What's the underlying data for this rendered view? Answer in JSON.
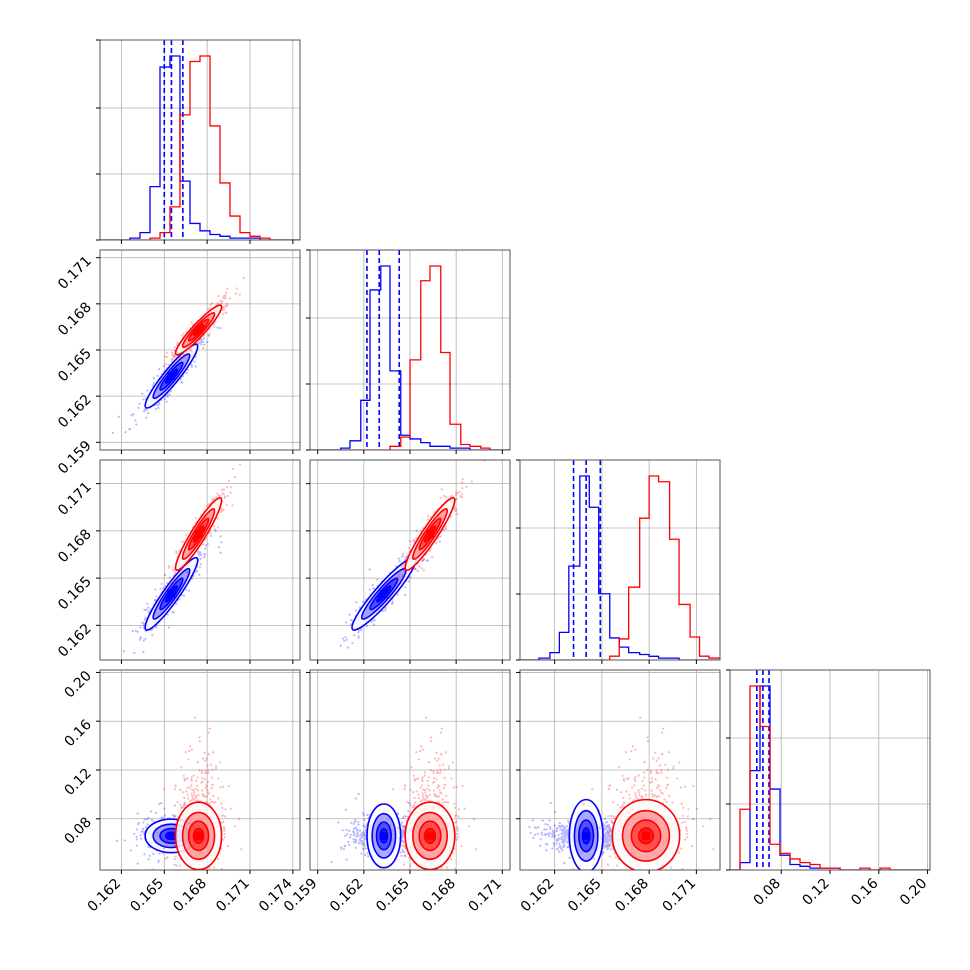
{
  "chart_data": {
    "type": "scatter",
    "title": "",
    "grid": true,
    "colors": {
      "blue": "#0000ff",
      "red": "#ff0000"
    },
    "dimensions": [
      {
        "range": [
          0.1605,
          0.1745
        ]
      },
      {
        "range": [
          0.1585,
          0.1715
        ]
      },
      {
        "range": [
          0.1598,
          0.1725
        ]
      },
      {
        "range": [
          0.038,
          0.202
        ]
      }
    ],
    "tick_labels": [
      {
        "values": [
          0.162,
          0.165,
          0.168,
          0.171,
          0.174
        ],
        "labels": [
          "0.162",
          "0.165",
          "0.168",
          "0.171",
          "0.174"
        ]
      },
      {
        "values": [
          0.159,
          0.162,
          0.165,
          0.168,
          0.171
        ],
        "labels": [
          "0.159",
          "0.162",
          "0.165",
          "0.168",
          "0.171"
        ]
      },
      {
        "values": [
          0.162,
          0.165,
          0.168,
          0.171
        ],
        "labels": [
          "0.162",
          "0.165",
          "0.168",
          "0.171"
        ]
      },
      {
        "values": [
          0.08,
          0.12,
          0.16,
          0.2
        ],
        "labels": [
          "0.08",
          "0.12",
          "0.16",
          "0.20"
        ]
      }
    ],
    "series": [
      {
        "color": "#0000ff",
        "mean": [
          0.1655,
          0.1633,
          0.164,
          0.066
        ],
        "std": [
          0.0008,
          0.0009,
          0.001,
          0.006
        ],
        "quantile_lines": [
          [
            0.165,
            0.1655,
            0.1663
          ],
          [
            0.1622,
            0.163,
            0.1643
          ],
          [
            0.1632,
            0.164,
            0.1649
          ],
          [
            0.06,
            0.065,
            0.07
          ]
        ],
        "histograms": [
          {
            "edges": [
              0.1605,
              0.1612,
              0.1619,
              0.1626,
              0.1633,
              0.164,
              0.1647,
              0.1654,
              0.1661,
              0.1668,
              0.1675,
              0.1682,
              0.1689,
              0.1696,
              0.1703,
              0.171,
              0.1717,
              0.1724,
              0.1731,
              0.1738,
              0.1745
            ],
            "counts": [
              0,
              0,
              0,
              1,
              4,
              29,
              94,
              100,
              32,
              9,
              5,
              3,
              2,
              1,
              1,
              1,
              0,
              0,
              0,
              0
            ]
          },
          {
            "edges": [
              0.1585,
              0.1592,
              0.1598,
              0.1605,
              0.1611,
              0.1618,
              0.1624,
              0.1631,
              0.1637,
              0.1644,
              0.165,
              0.1657,
              0.1663,
              0.167,
              0.1676,
              0.1683,
              0.1689,
              0.1696,
              0.1702,
              0.1709,
              0.1715
            ],
            "counts": [
              0,
              0,
              0,
              1,
              5,
              27,
              87,
              100,
              43,
              8,
              6,
              4,
              2,
              2,
              1,
              1,
              0,
              0,
              0,
              0
            ]
          },
          {
            "edges": [
              0.1598,
              0.1604,
              0.161,
              0.1617,
              0.1623,
              0.1629,
              0.1636,
              0.1642,
              0.1648,
              0.1655,
              0.1661,
              0.1667,
              0.1674,
              0.168,
              0.1686,
              0.1693,
              0.1699,
              0.1706,
              0.1712,
              0.1718,
              0.1725
            ],
            "counts": [
              0,
              0,
              1,
              4,
              15,
              51,
              100,
              83,
              36,
              12,
              7,
              4,
              3,
              2,
              1,
              1,
              0,
              0,
              0,
              0
            ]
          },
          {
            "edges": [
              0.038,
              0.0462,
              0.0544,
              0.0626,
              0.0708,
              0.079,
              0.0872,
              0.0954,
              0.1036,
              0.1118,
              0.12,
              0.1282,
              0.1364,
              0.1446,
              0.1528,
              0.161,
              0.1692,
              0.1774,
              0.1856,
              0.1938,
              0.202
            ],
            "counts": [
              0,
              4,
              54,
              100,
              44,
              8,
              3,
              2,
              1,
              1,
              1,
              0,
              0,
              0,
              0,
              0,
              0,
              0,
              0,
              0
            ]
          }
        ]
      },
      {
        "color": "#ff0000",
        "mean": [
          0.1674,
          0.1663,
          0.1678,
          0.066
        ],
        "std": [
          0.0007,
          0.0007,
          0.001,
          0.012
        ],
        "quantile_lines": [],
        "histograms": [
          {
            "edges": [
              0.1605,
              0.1612,
              0.1619,
              0.1626,
              0.1633,
              0.164,
              0.1647,
              0.1654,
              0.1661,
              0.1668,
              0.1675,
              0.1682,
              0.1689,
              0.1696,
              0.1703,
              0.171,
              0.1717,
              0.1724,
              0.1731,
              0.1738,
              0.1745
            ],
            "counts": [
              0,
              0,
              0,
              0,
              0,
              1,
              4,
              18,
              68,
              97,
              100,
              62,
              31,
              13,
              4,
              2,
              1,
              0,
              0,
              0
            ]
          },
          {
            "edges": [
              0.1585,
              0.1592,
              0.1598,
              0.1605,
              0.1611,
              0.1618,
              0.1624,
              0.1631,
              0.1637,
              0.1644,
              0.165,
              0.1657,
              0.1663,
              0.167,
              0.1676,
              0.1683,
              0.1689,
              0.1696,
              0.1702,
              0.1709,
              0.1715
            ],
            "counts": [
              0,
              0,
              0,
              0,
              0,
              0,
              0,
              0,
              2,
              7,
              49,
              92,
              100,
              53,
              14,
              3,
              2,
              1,
              0,
              0
            ]
          },
          {
            "edges": [
              0.1598,
              0.1604,
              0.161,
              0.1617,
              0.1623,
              0.1629,
              0.1636,
              0.1642,
              0.1648,
              0.1655,
              0.1661,
              0.1667,
              0.1674,
              0.168,
              0.1686,
              0.1693,
              0.1699,
              0.1706,
              0.1712,
              0.1718,
              0.1725
            ],
            "counts": [
              0,
              0,
              0,
              0,
              0,
              0,
              0,
              0,
              0,
              2,
              11,
              38,
              74,
              96,
              93,
              63,
              29,
              12,
              2,
              1
            ]
          },
          {
            "edges": [
              0.038,
              0.0462,
              0.0544,
              0.0626,
              0.0708,
              0.079,
              0.0872,
              0.0954,
              0.1036,
              0.1118,
              0.12,
              0.1282,
              0.1364,
              0.1446,
              0.1528,
              0.161,
              0.1692,
              0.1774,
              0.1856,
              0.1938,
              0.202
            ],
            "counts": [
              0,
              33,
              100,
              78,
              14,
              9,
              6,
              4,
              3,
              1,
              1,
              0,
              0,
              1,
              0,
              1,
              0,
              0,
              0,
              0
            ]
          }
        ]
      }
    ]
  }
}
